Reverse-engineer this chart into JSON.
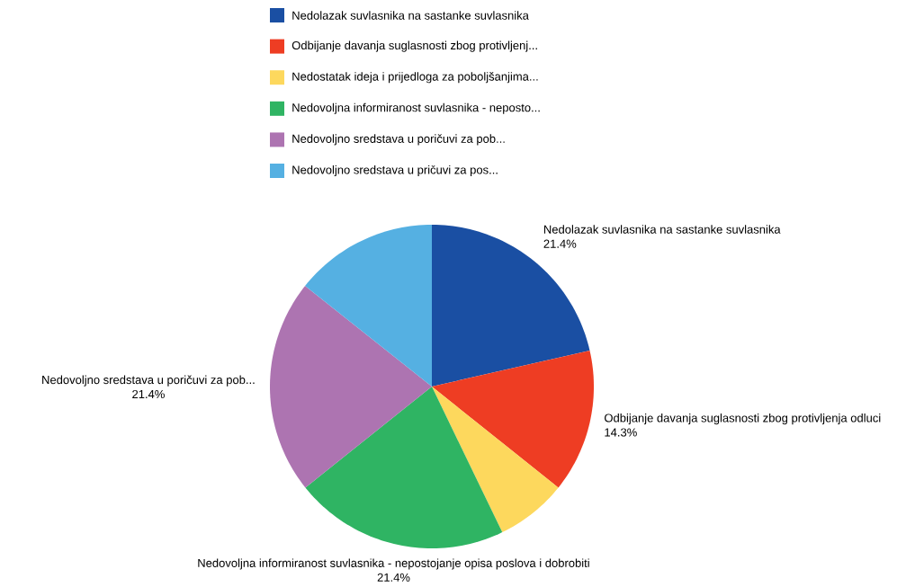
{
  "chart_data": {
    "type": "pie",
    "categories": [
      "Nedolazak suvlasnika na sastanke suvlasnika",
      "Odbijanje davanja suglasnosti zbog protivljenj...",
      "Nedostatak ideja i prijedloga za poboljšanjima...",
      "Nedovoljna informiranost suvlasnika - neposto...",
      "Nedovoljno sredstava u poričuvi za pob...",
      "Nedovoljno sredstava u pričuvi za pos..."
    ],
    "values": [
      21.4,
      14.3,
      7.1,
      21.4,
      21.4,
      14.3
    ],
    "colors": [
      "#1a4fa3",
      "#ee3d23",
      "#fdd85d",
      "#2fb463",
      "#ad74b1",
      "#55b0e2"
    ],
    "value_labels": [
      "21.4%",
      "14.3%",
      null,
      "21.4%",
      "21.4%",
      null
    ],
    "annotations": [
      "Nedolazak suvlasnika na sastanke suvlasnika",
      "Odbijanje davanja suglasnosti zbog protivljenja odluci",
      "Nedovoljna informiranost suvlasnika - nepostojanje opisa poslova i dobrobiti",
      "Nedovoljno sredstava u poričuvi za pob..."
    ],
    "legend": "top"
  }
}
